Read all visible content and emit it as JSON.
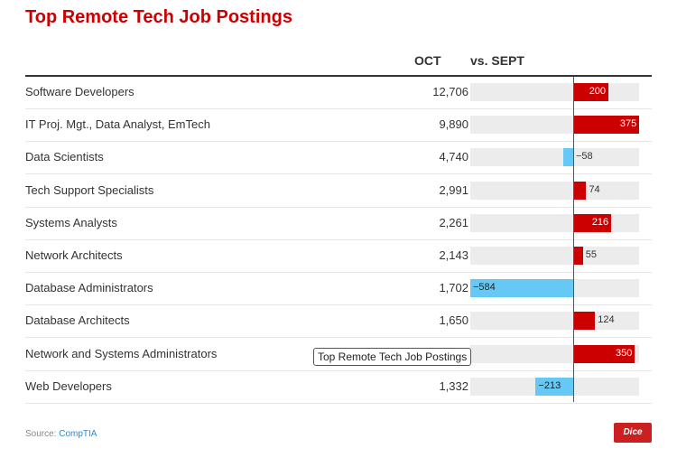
{
  "title": "Top Remote Tech Job Postings",
  "col_oct": "OCT",
  "col_vs": "vs. SEPT",
  "tooltip": "Top Remote Tech Job Postings",
  "source_label": "Source:",
  "source_name": "CompTIA",
  "logo": "Dice",
  "colors": {
    "pos": "#cc0000",
    "neg": "#66c8f5"
  },
  "chart_data": {
    "type": "table",
    "title": "Top Remote Tech Job Postings",
    "columns": [
      "",
      "OCT",
      "vs. SEPT"
    ],
    "xlim": [
      -584,
      375
    ],
    "rows": [
      {
        "label": "Software Developers",
        "oct": "12,706",
        "change": 200,
        "change_label": "200"
      },
      {
        "label": "IT Proj. Mgt., Data Analyst, EmTech",
        "oct": "9,890",
        "change": 375,
        "change_label": "375"
      },
      {
        "label": "Data Scientists",
        "oct": "4,740",
        "change": -58,
        "change_label": "−58"
      },
      {
        "label": "Tech Support Specialists",
        "oct": "2,991",
        "change": 74,
        "change_label": "74"
      },
      {
        "label": "Systems Analysts",
        "oct": "2,261",
        "change": 216,
        "change_label": "216"
      },
      {
        "label": "Network Architects",
        "oct": "2,143",
        "change": 55,
        "change_label": "55"
      },
      {
        "label": "Database Administrators",
        "oct": "1,702",
        "change": -584,
        "change_label": "−584"
      },
      {
        "label": "Database Architects",
        "oct": "1,650",
        "change": 124,
        "change_label": "124"
      },
      {
        "label": "Network and Systems Administrators",
        "oct": null,
        "change": 350,
        "change_label": "350"
      },
      {
        "label": "Web Developers",
        "oct": "1,332",
        "change": -213,
        "change_label": "−213"
      }
    ]
  }
}
